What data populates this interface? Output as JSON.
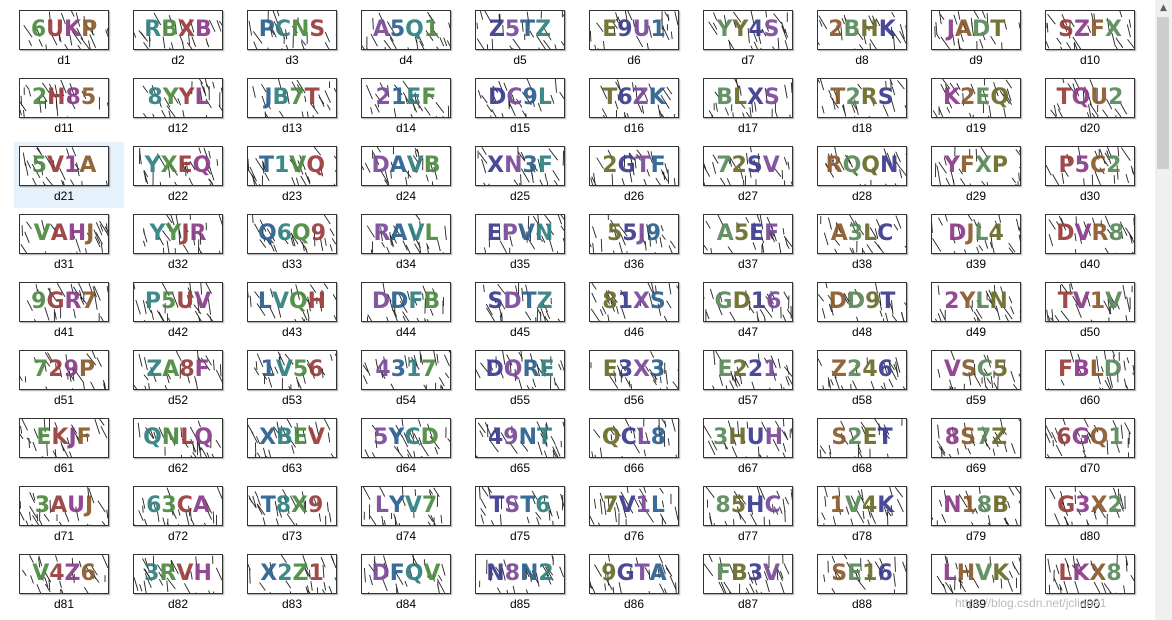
{
  "files": [
    {
      "name": "d1",
      "code": "6UKP"
    },
    {
      "name": "d2",
      "code": "RBXB"
    },
    {
      "name": "d3",
      "code": "PCNS"
    },
    {
      "name": "d4",
      "code": "A5Q1"
    },
    {
      "name": "d5",
      "code": "Z5TZ"
    },
    {
      "name": "d6",
      "code": "E9U1"
    },
    {
      "name": "d7",
      "code": "YY4S"
    },
    {
      "name": "d8",
      "code": "2BHK"
    },
    {
      "name": "d9",
      "code": "JADT"
    },
    {
      "name": "d10",
      "code": "SZFX"
    },
    {
      "name": "d11",
      "code": "2H85"
    },
    {
      "name": "d12",
      "code": "8YYL"
    },
    {
      "name": "d13",
      "code": "JB7T"
    },
    {
      "name": "d14",
      "code": "21EF"
    },
    {
      "name": "d15",
      "code": "DC9L"
    },
    {
      "name": "d16",
      "code": "T6ZK"
    },
    {
      "name": "d17",
      "code": "BLXS"
    },
    {
      "name": "d18",
      "code": "T2RS"
    },
    {
      "name": "d19",
      "code": "K2EQ"
    },
    {
      "name": "d20",
      "code": "TQU2"
    },
    {
      "name": "d21",
      "code": "5V1A"
    },
    {
      "name": "d22",
      "code": "YXEQ"
    },
    {
      "name": "d23",
      "code": "T1VQ"
    },
    {
      "name": "d24",
      "code": "DAVB"
    },
    {
      "name": "d25",
      "code": "XN3F"
    },
    {
      "name": "d26",
      "code": "2GTF"
    },
    {
      "name": "d27",
      "code": "72SV"
    },
    {
      "name": "d28",
      "code": "RQQN"
    },
    {
      "name": "d29",
      "code": "YFXP"
    },
    {
      "name": "d30",
      "code": "P5C2"
    },
    {
      "name": "d31",
      "code": "VAHJ"
    },
    {
      "name": "d32",
      "code": "YYJR"
    },
    {
      "name": "d33",
      "code": "Q6Q9"
    },
    {
      "name": "d34",
      "code": "RAVL"
    },
    {
      "name": "d35",
      "code": "EPVN"
    },
    {
      "name": "d36",
      "code": "55J9"
    },
    {
      "name": "d37",
      "code": "A5EF"
    },
    {
      "name": "d38",
      "code": "A3LC"
    },
    {
      "name": "d39",
      "code": "DJL4"
    },
    {
      "name": "d40",
      "code": "DVR8"
    },
    {
      "name": "d41",
      "code": "9GR7"
    },
    {
      "name": "d42",
      "code": "P5UV"
    },
    {
      "name": "d43",
      "code": "LVQH"
    },
    {
      "name": "d44",
      "code": "DDFB"
    },
    {
      "name": "d45",
      "code": "SDTZ"
    },
    {
      "name": "d46",
      "code": "81XS"
    },
    {
      "name": "d47",
      "code": "GD16"
    },
    {
      "name": "d48",
      "code": "DD9T"
    },
    {
      "name": "d49",
      "code": "2YLN"
    },
    {
      "name": "d50",
      "code": "TV1V"
    },
    {
      "name": "d51",
      "code": "729P"
    },
    {
      "name": "d52",
      "code": "ZA8F"
    },
    {
      "name": "d53",
      "code": "1V56"
    },
    {
      "name": "d54",
      "code": "4317"
    },
    {
      "name": "d55",
      "code": "DQRE"
    },
    {
      "name": "d56",
      "code": "E3X3"
    },
    {
      "name": "d57",
      "code": "E221"
    },
    {
      "name": "d58",
      "code": "Z246"
    },
    {
      "name": "d59",
      "code": "VSC5"
    },
    {
      "name": "d60",
      "code": "FBLD"
    },
    {
      "name": "d61",
      "code": "EKJF"
    },
    {
      "name": "d62",
      "code": "QNLQ"
    },
    {
      "name": "d63",
      "code": "XBEV"
    },
    {
      "name": "d64",
      "code": "5YCD"
    },
    {
      "name": "d65",
      "code": "49NT"
    },
    {
      "name": "d66",
      "code": "QCL8"
    },
    {
      "name": "d67",
      "code": "3HUH"
    },
    {
      "name": "d68",
      "code": "S2ET"
    },
    {
      "name": "d69",
      "code": "8S7Z"
    },
    {
      "name": "d70",
      "code": "6GQ1"
    },
    {
      "name": "d71",
      "code": "3AUJ"
    },
    {
      "name": "d72",
      "code": "63CA"
    },
    {
      "name": "d73",
      "code": "T8X9"
    },
    {
      "name": "d74",
      "code": "LYV7"
    },
    {
      "name": "d75",
      "code": "TST6"
    },
    {
      "name": "d76",
      "code": "7V1L"
    },
    {
      "name": "d77",
      "code": "85HC"
    },
    {
      "name": "d78",
      "code": "1V4K"
    },
    {
      "name": "d79",
      "code": "N18B"
    },
    {
      "name": "d80",
      "code": "G3X2"
    },
    {
      "name": "d81",
      "code": "V4Z6"
    },
    {
      "name": "d82",
      "code": "3RVH"
    },
    {
      "name": "d83",
      "code": "X2Z1"
    },
    {
      "name": "d84",
      "code": "DFQV"
    },
    {
      "name": "d85",
      "code": "N8N2"
    },
    {
      "name": "d86",
      "code": "9GTA"
    },
    {
      "name": "d87",
      "code": "FB3V"
    },
    {
      "name": "d88",
      "code": "SE16"
    },
    {
      "name": "d89",
      "code": "LHVK"
    },
    {
      "name": "d90",
      "code": "LKX8"
    }
  ],
  "selected_file": "d21",
  "palette": [
    "#4b8a3e",
    "#8a5a2b",
    "#3b3b8f",
    "#2f7f7f",
    "#8a3b8a",
    "#6b6b2b",
    "#2b5f8f",
    "#9a3b3b",
    "#5a8a5a",
    "#7a4a9a"
  ],
  "scrollbar": {
    "up_arrow": "up-arrow-icon"
  },
  "watermark": "https://blog.csdn.net/jclian91"
}
